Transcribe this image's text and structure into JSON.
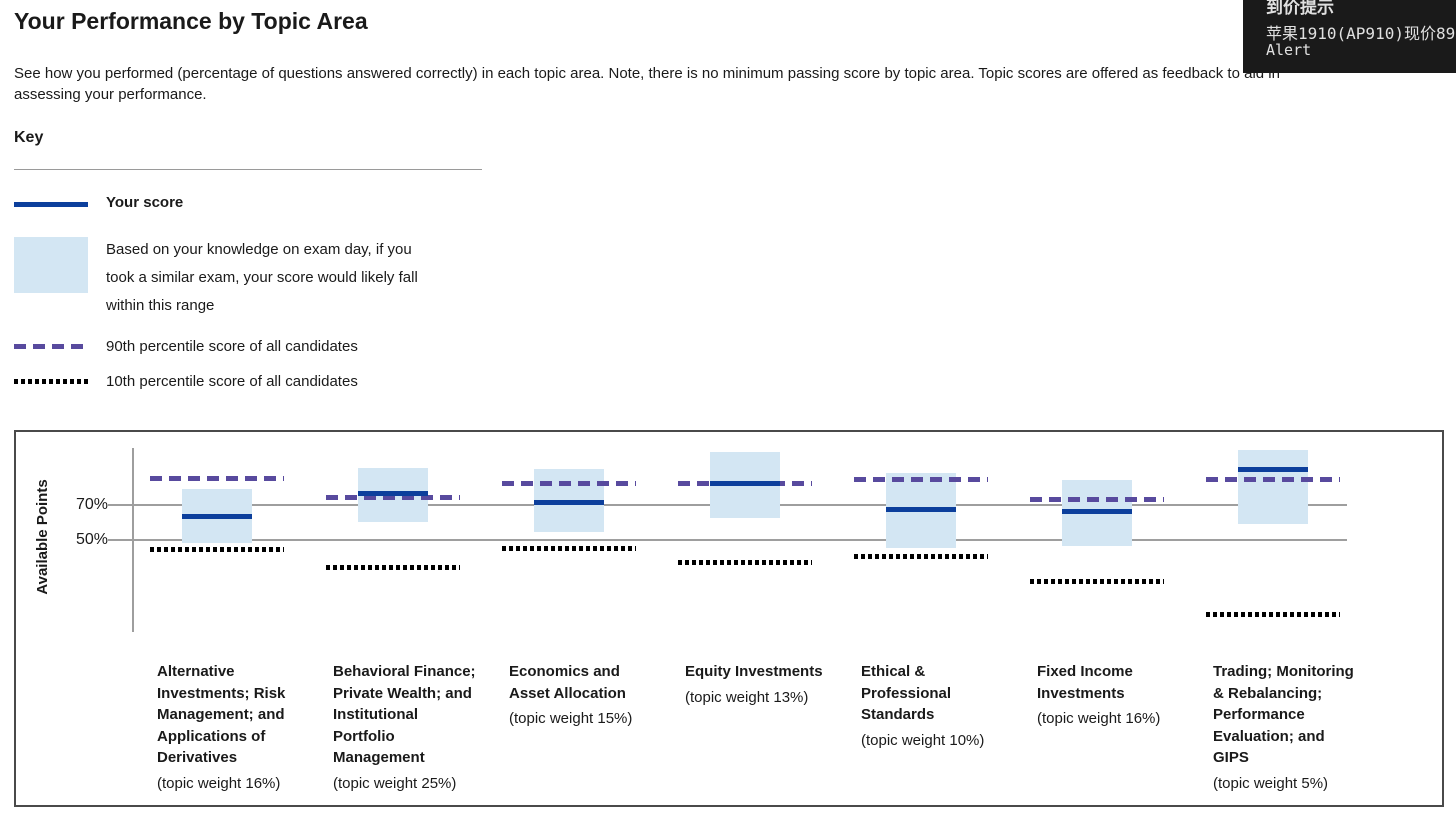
{
  "page": {
    "title": "Your Performance by Topic Area",
    "intro_line1": "See how you performed (percentage of questions answered correctly) in each topic area. Note, there is no minimum passing score by topic area. Topic scores are offered as feedback to aid in",
    "intro_line2": "assessing your performance."
  },
  "key": {
    "heading": "Key",
    "your_score_label": "Your score",
    "range_label_lines": [
      "Based on your knowledge on exam day, if you",
      "took a similar exam, your score would likely fall",
      "within this range"
    ],
    "p90_label": "90th percentile score of all candidates",
    "p10_label": "10th percentile score of all candidates"
  },
  "overlay": {
    "title": "到价提示",
    "message": "苹果1910(AP910)现价896",
    "footer": "Alert"
  },
  "colors": {
    "score_blue": "#0c3f9c",
    "range_fill": "#d3e6f3",
    "p90_purple": "#584a9e",
    "p10_black": "#000000",
    "grid_gray": "#9e9e9e"
  },
  "chart_data": {
    "type": "box-range",
    "ylabel": "Available Points",
    "yticks": [
      {
        "label": "70%",
        "value": 70
      },
      {
        "label": "50%",
        "value": 50
      }
    ],
    "ylim": [
      0,
      105
    ],
    "grid": true,
    "legend_position": "above-chart",
    "topics": [
      {
        "name": "Alternative Investments; Risk Management; and Applications of Derivatives",
        "weight": "(topic weight 16%)",
        "score": 64,
        "range_low": 49,
        "range_high": 80,
        "p90": 86,
        "p10": 45
      },
      {
        "name": "Behavioral Finance; Private Wealth; and Institutional Portfolio Management",
        "weight": "(topic weight 25%)",
        "score": 77,
        "range_low": 61,
        "range_high": 92,
        "p90": 75,
        "p10": 35
      },
      {
        "name": "Economics and Asset Allocation",
        "weight": "(topic weight 15%)",
        "score": 72,
        "range_low": 55,
        "range_high": 91,
        "p90": 83,
        "p10": 46
      },
      {
        "name": "Equity Investments",
        "weight": "(topic weight 13%)",
        "score": 83,
        "range_low": 63,
        "range_high": 101,
        "p90": 83,
        "p10": 38
      },
      {
        "name": "Ethical & Professional Standards",
        "weight": "(topic weight 10%)",
        "score": 68,
        "range_low": 46,
        "range_high": 89,
        "p90": 85,
        "p10": 41
      },
      {
        "name": "Fixed Income Investments",
        "weight": "(topic weight 16%)",
        "score": 67,
        "range_low": 47,
        "range_high": 85,
        "p90": 74,
        "p10": 27
      },
      {
        "name": "Trading; Monitoring & Rebalancing; Performance Evaluation; and GIPS",
        "weight": "(topic weight 5%)",
        "score": 91,
        "range_low": 60,
        "range_high": 102,
        "p90": 85,
        "p10": 8
      }
    ]
  }
}
